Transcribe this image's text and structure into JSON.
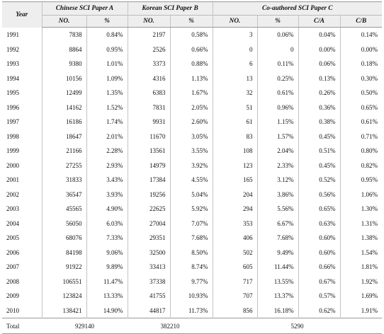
{
  "headers": {
    "year": "Year",
    "paper_a": "Chinese SCI Paper A",
    "paper_b": "Korean SCI  Paper B",
    "paper_c": "Co-authored SCI  Paper C",
    "no": "NO.",
    "pct": "%",
    "c_over_a": "C/A",
    "c_over_b": "C/B"
  },
  "rows": [
    [
      "1991",
      "7838",
      "0.84%",
      "2197",
      "0.58%",
      "3",
      "0.06%",
      "0.04%",
      "0.14%"
    ],
    [
      "1992",
      "8864",
      "0.95%",
      "2526",
      "0.66%",
      "0",
      "0",
      "0.00%",
      "0.00%"
    ],
    [
      "1993",
      "9380",
      "1.01%",
      "3373",
      "0.88%",
      "6",
      "0.11%",
      "0.06%",
      "0.18%"
    ],
    [
      "1994",
      "10156",
      "1.09%",
      "4316",
      "1.13%",
      "13",
      "0.25%",
      "0.13%",
      "0.30%"
    ],
    [
      "1995",
      "12499",
      "1.35%",
      "6383",
      "1.67%",
      "32",
      "0.61%",
      "0.26%",
      "0.50%"
    ],
    [
      "1996",
      "14162",
      "1.52%",
      "7831",
      "2.05%",
      "51",
      "0.96%",
      "0.36%",
      "0.65%"
    ],
    [
      "1997",
      "16186",
      "1.74%",
      "9931",
      "2.60%",
      "61",
      "1.15%",
      "0.38%",
      "0.61%"
    ],
    [
      "1998",
      "18647",
      "2.01%",
      "11670",
      "3.05%",
      "83",
      "1.57%",
      "0.45%",
      "0.71%"
    ],
    [
      "1999",
      "21166",
      "2.28%",
      "13561",
      "3.55%",
      "108",
      "2.04%",
      "0.51%",
      "0.80%"
    ],
    [
      "2000",
      "27255",
      "2.93%",
      "14979",
      "3.92%",
      "123",
      "2.33%",
      "0.45%",
      "0.82%"
    ],
    [
      "2001",
      "31833",
      "3.43%",
      "17384",
      "4.55%",
      "165",
      "3.12%",
      "0.52%",
      "0.95%"
    ],
    [
      "2002",
      "36547",
      "3.93%",
      "19256",
      "5.04%",
      "204",
      "3.86%",
      "0.56%",
      "1.06%"
    ],
    [
      "2003",
      "45565",
      "4.90%",
      "22625",
      "5.92%",
      "294",
      "5.56%",
      "0.65%",
      "1.30%"
    ],
    [
      "2004",
      "56050",
      "6.03%",
      "27004",
      "7.07%",
      "353",
      "6.67%",
      "0.63%",
      "1.31%"
    ],
    [
      "2005",
      "68076",
      "7.33%",
      "29351",
      "7.68%",
      "406",
      "7.68%",
      "0.60%",
      "1.38%"
    ],
    [
      "2006",
      "84198",
      "9.06%",
      "32500",
      "8.50%",
      "502",
      "9.49%",
      "0.60%",
      "1.54%"
    ],
    [
      "2007",
      "91922",
      "9.89%",
      "33413",
      "8.74%",
      "605",
      "11.44%",
      "0.66%",
      "1.81%"
    ],
    [
      "2008",
      "106551",
      "11.47%",
      "37338",
      "9.77%",
      "717",
      "13.55%",
      "0.67%",
      "1.92%"
    ],
    [
      "2009",
      "123824",
      "13.33%",
      "41755",
      "10.93%",
      "707",
      "13.37%",
      "0.57%",
      "1.69%"
    ],
    [
      "2010",
      "138421",
      "14.90%",
      "44817",
      "11.73%",
      "856",
      "16.18%",
      "0.62%",
      "1.91%"
    ]
  ],
  "total": {
    "label": "Total",
    "a": "929140",
    "b": "382210",
    "c": "5290"
  }
}
